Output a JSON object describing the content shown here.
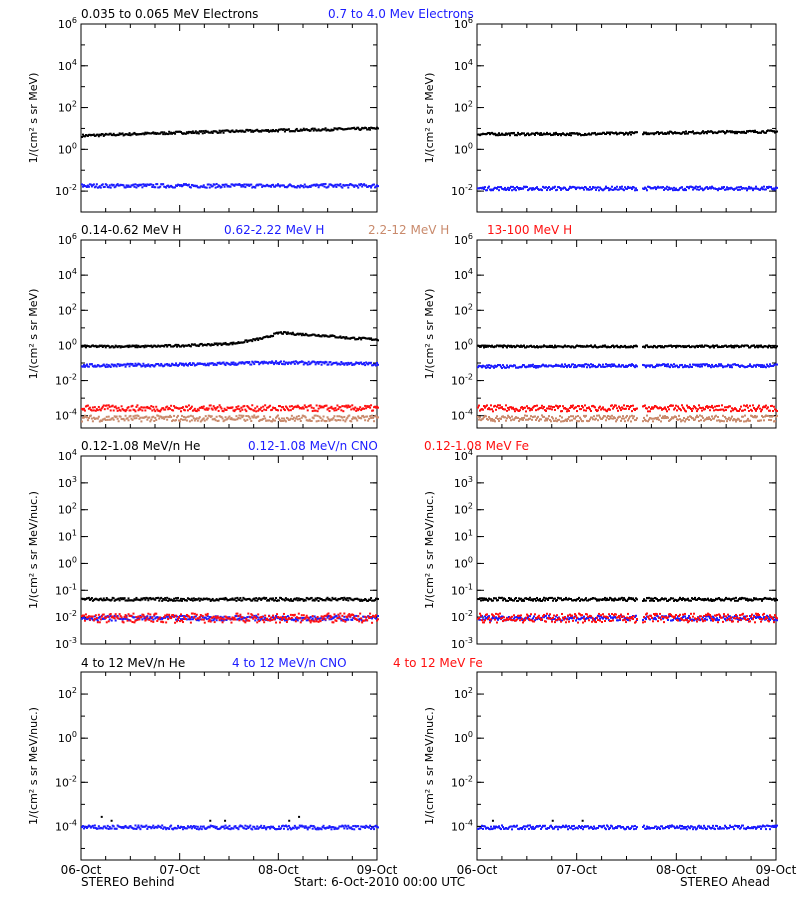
{
  "colors": {
    "black": "#000000",
    "blue": "#1c1cff",
    "tan": "#c98a6c",
    "red": "#ff1010"
  },
  "x_axis": {
    "ticks": [
      "06-Oct",
      "07-Oct",
      "08-Oct",
      "09-Oct"
    ],
    "tick_days": [
      0,
      1,
      2,
      3
    ],
    "minor_ticks_per_day": 4
  },
  "footer": {
    "left": "STEREO Behind",
    "center": "Start:  6-Oct-2010 00:00 UTC",
    "right": "STEREO Ahead"
  },
  "chart_data": [
    {
      "type": "scatter",
      "row": 0,
      "side": "left",
      "ylabel": "1/(cm² s sr MeV)",
      "ylog": true,
      "ylim": [
        0.001,
        1000000
      ],
      "yticks": [
        "10^6",
        "10^4",
        "10^2",
        "10^0",
        "10^-2"
      ],
      "series": [
        {
          "name": "0.035 to 0.065 MeV Electrons",
          "color": "black",
          "x": [
            0,
            0.5,
            1,
            1.5,
            2,
            2.5,
            3
          ],
          "y": [
            5,
            6,
            7,
            8,
            9,
            10,
            11
          ]
        },
        {
          "name": "0.7 to 4.0 Mev Electrons",
          "color": "blue",
          "x": [
            0,
            1,
            2,
            3
          ],
          "y": [
            0.02,
            0.02,
            0.02,
            0.02
          ]
        }
      ]
    },
    {
      "type": "scatter",
      "row": 0,
      "side": "right",
      "ylabel": "1/(cm² s sr MeV)",
      "ylog": true,
      "ylim": [
        0.001,
        1000000
      ],
      "yticks": [
        "10^6",
        "10^4",
        "10^2",
        "10^0",
        "10^-2"
      ],
      "data_gap": [
        1.6,
        1.65
      ],
      "series": [
        {
          "color": "black",
          "x": [
            0,
            1,
            2,
            3
          ],
          "y": [
            6,
            6,
            7,
            8
          ]
        },
        {
          "color": "blue",
          "x": [
            0,
            1,
            2,
            3
          ],
          "y": [
            0.015,
            0.015,
            0.015,
            0.015
          ]
        }
      ]
    },
    {
      "type": "scatter",
      "row": 1,
      "side": "left",
      "ylabel": "1/(cm² s sr MeV)",
      "ylog": true,
      "ylim": [
        2e-05,
        1000000
      ],
      "yticks": [
        "10^6",
        "10^4",
        "10^2",
        "10^0",
        "10^-2",
        "10^-4"
      ],
      "series": [
        {
          "name": "0.14-0.62 MeV H",
          "color": "black",
          "x": [
            0,
            0.7,
            1.2,
            1.55,
            1.85,
            2.0,
            2.2,
            2.5,
            2.7,
            3
          ],
          "y": [
            1,
            1,
            1.2,
            1.5,
            3,
            6,
            5,
            4,
            3,
            2.5
          ]
        },
        {
          "name": "0.62-2.22 MeV H",
          "color": "blue",
          "x": [
            0,
            1,
            2,
            3
          ],
          "y": [
            0.08,
            0.09,
            0.12,
            0.1
          ]
        },
        {
          "name": "2.2-12 MeV H",
          "color": "tan",
          "x": [
            0,
            1,
            2,
            3
          ],
          "y": [
            8e-05,
            8e-05,
            8e-05,
            8e-05
          ]
        },
        {
          "name": "13-100 MeV H",
          "color": "red",
          "x": [
            0,
            1,
            2,
            3
          ],
          "y": [
            0.0003,
            0.0003,
            0.0003,
            0.0003
          ]
        }
      ]
    },
    {
      "type": "scatter",
      "row": 1,
      "side": "right",
      "ylabel": "1/(cm² s sr MeV)",
      "ylog": true,
      "ylim": [
        2e-05,
        1000000
      ],
      "yticks": [
        "10^6",
        "10^4",
        "10^2",
        "10^0",
        "10^-2",
        "10^-4"
      ],
      "data_gap": [
        1.6,
        1.65
      ],
      "series": [
        {
          "color": "black",
          "x": [
            0,
            1,
            2,
            3
          ],
          "y": [
            1,
            1,
            1,
            1
          ]
        },
        {
          "color": "blue",
          "x": [
            0,
            1,
            2,
            3
          ],
          "y": [
            0.07,
            0.08,
            0.08,
            0.08
          ]
        },
        {
          "color": "tan",
          "x": [
            0,
            1,
            2,
            3
          ],
          "y": [
            8e-05,
            8e-05,
            8e-05,
            8e-05
          ]
        },
        {
          "color": "red",
          "x": [
            0,
            1,
            2,
            3
          ],
          "y": [
            0.0003,
            0.0003,
            0.0003,
            0.0003
          ]
        }
      ]
    },
    {
      "type": "scatter",
      "row": 2,
      "side": "left",
      "ylabel": "1/(cm² s sr MeV/nuc.)",
      "ylog": true,
      "ylim": [
        0.001,
        10000
      ],
      "yticks": [
        "10^4",
        "10^3",
        "10^2",
        "10^1",
        "10^0",
        "10^-1",
        "10^-2",
        "10^-3"
      ],
      "series": [
        {
          "name": "0.12-1.08 MeV/n He",
          "color": "black",
          "x": [
            0,
            1,
            2,
            3
          ],
          "y": [
            0.05,
            0.05,
            0.05,
            0.05
          ]
        },
        {
          "name": "0.12-1.08 MeV/n CNO",
          "color": "blue",
          "x": [
            0,
            1,
            2,
            3
          ],
          "y": [
            0.01,
            0.01,
            0.01,
            0.01
          ]
        },
        {
          "name": "0.12-1.08 MeV Fe",
          "color": "red",
          "x": [
            0,
            1,
            2,
            3
          ],
          "y": [
            0.01,
            0.01,
            0.01,
            0.01
          ]
        }
      ]
    },
    {
      "type": "scatter",
      "row": 2,
      "side": "right",
      "ylabel": "1/(cm² s sr MeV/nuc.)",
      "ylog": true,
      "ylim": [
        0.001,
        10000
      ],
      "yticks": [
        "10^4",
        "10^3",
        "10^2",
        "10^1",
        "10^0",
        "10^-1",
        "10^-2",
        "10^-3"
      ],
      "data_gap": [
        1.6,
        1.65
      ],
      "series": [
        {
          "color": "black",
          "x": [
            0,
            1,
            2,
            3
          ],
          "y": [
            0.05,
            0.05,
            0.05,
            0.05
          ]
        },
        {
          "color": "blue",
          "x": [
            0,
            1,
            2,
            3
          ],
          "y": [
            0.01,
            0.01,
            0.01,
            0.01
          ]
        },
        {
          "color": "red",
          "x": [
            0,
            1,
            2,
            3
          ],
          "y": [
            0.01,
            0.01,
            0.01,
            0.01
          ]
        }
      ]
    },
    {
      "type": "scatter",
      "row": 3,
      "side": "left",
      "ylabel": "1/(cm² s sr MeV/nuc.)",
      "ylog": true,
      "ylim": [
        3e-06,
        1000
      ],
      "yticks": [
        "10^2",
        "10^0",
        "10^-2",
        "10^-4"
      ],
      "series": [
        {
          "name": "4 to 12 MeV/n He",
          "color": "black",
          "x": [
            0.2,
            0.3,
            1.3,
            1.45,
            2.1,
            2.2
          ],
          "y": [
            0.0003,
            0.0002,
            0.0002,
            0.0002,
            0.0002,
            0.0003
          ]
        },
        {
          "name": "4 to 12 MeV/n CNO",
          "color": "blue",
          "x": [
            0,
            1,
            2,
            3
          ],
          "y": [
            0.0001,
            0.0001,
            0.0001,
            0.0001
          ]
        },
        {
          "name": "4 to 12 MeV Fe",
          "color": "red",
          "x": [],
          "y": []
        }
      ]
    },
    {
      "type": "scatter",
      "row": 3,
      "side": "right",
      "ylabel": "1/(cm² s sr MeV/nuc.)",
      "ylog": true,
      "ylim": [
        3e-06,
        1000
      ],
      "yticks": [
        "10^2",
        "10^0",
        "10^-2",
        "10^-4"
      ],
      "data_gap": [
        1.6,
        1.65
      ],
      "series": [
        {
          "color": "black",
          "x": [
            0.15,
            0.75,
            1.05,
            2.95
          ],
          "y": [
            0.0002,
            0.0002,
            0.0002,
            0.0002
          ]
        },
        {
          "color": "blue",
          "x": [
            0,
            1,
            2,
            3
          ],
          "y": [
            0.0001,
            0.0001,
            0.0001,
            0.0001
          ]
        }
      ]
    }
  ]
}
